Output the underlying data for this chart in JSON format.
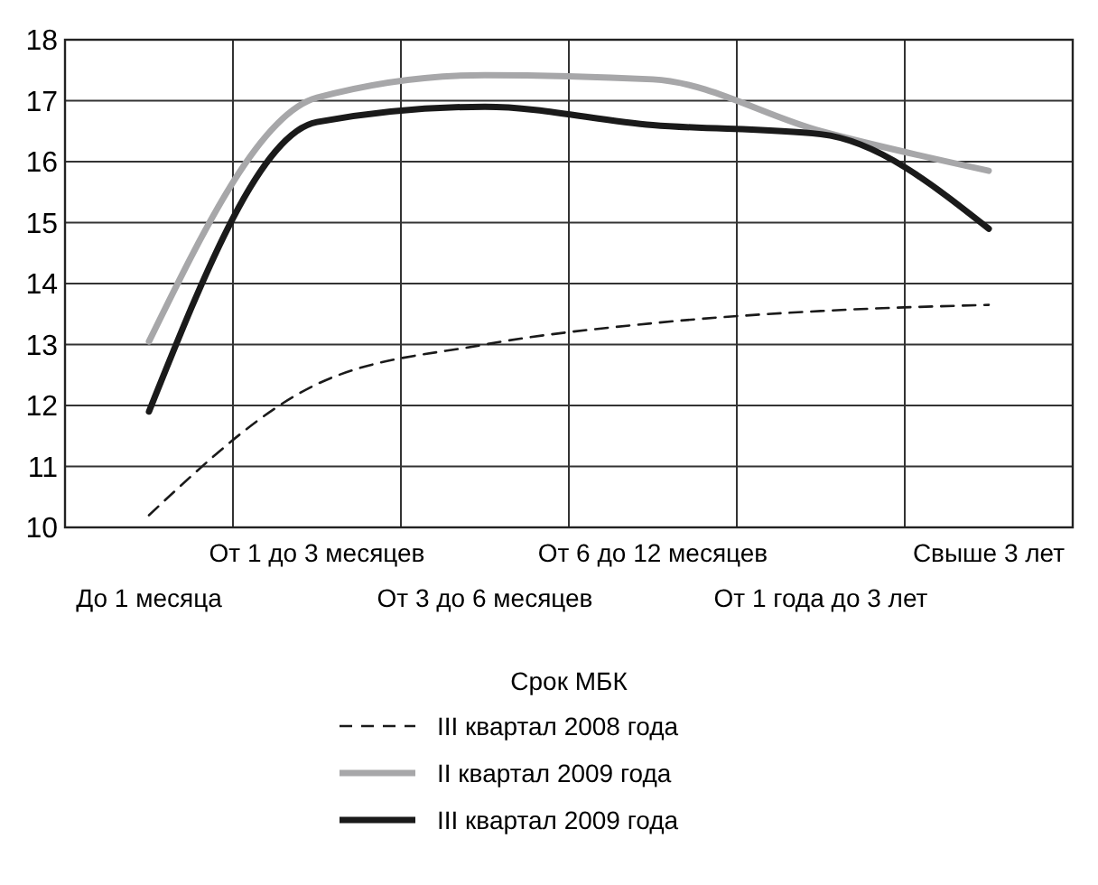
{
  "chart_data": {
    "type": "line",
    "xlabel": "Срок МБК",
    "categories": [
      "До 1 месяца",
      "От 1 до 3 месяцев",
      "От 3 до 6 месяцев",
      "От 6 до 12 месяцев",
      "От 1 года до 3 лет",
      "Свыше 3 лет"
    ],
    "series": [
      {
        "name": "III квартал 2008 года",
        "color": "#1a1a1a",
        "line_style": "dashed",
        "values": [
          10.2,
          12.35,
          13.0,
          13.35,
          13.55,
          13.65
        ]
      },
      {
        "name": "II квартал 2009 года",
        "color": "#a7a7a9",
        "line_style": "solid",
        "values": [
          13.05,
          17.05,
          17.42,
          17.35,
          16.5,
          15.85
        ]
      },
      {
        "name": "III квартал 2009 года",
        "color": "#1a1a1a",
        "line_style": "solid",
        "values": [
          11.9,
          16.65,
          16.9,
          16.6,
          16.45,
          14.9
        ]
      }
    ],
    "ylim": [
      10,
      18
    ],
    "yticks": [
      10,
      11,
      12,
      13,
      14,
      15,
      16,
      17,
      18
    ],
    "grid": true,
    "legend": "bottom"
  }
}
